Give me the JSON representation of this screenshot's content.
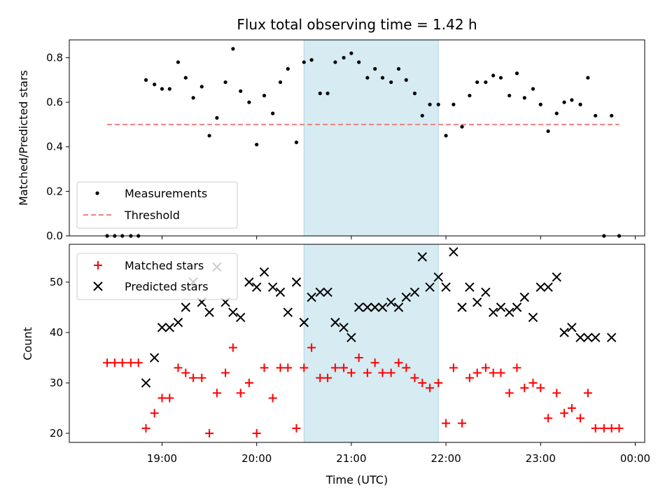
{
  "chart_data": {
    "title": "Flux total observing time = 1.42 h",
    "xlabel": "Time (UTC)",
    "x_ticks": [
      "19:00",
      "20:00",
      "21:00",
      "22:00",
      "23:00",
      "00:00"
    ],
    "x_tick_hours": [
      19,
      20,
      21,
      22,
      23,
      24
    ],
    "xlim_hours": [
      18.02,
      24.1
    ],
    "highlight_span_hours": [
      20.5,
      21.92
    ],
    "highlight_color": "#add8e6",
    "top": {
      "type": "scatter",
      "ylabel": "Matched/Predicted stars",
      "ylim": [
        0,
        0.88
      ],
      "y_ticks": [
        0.0,
        0.2,
        0.4,
        0.6,
        0.8
      ],
      "series": [
        {
          "name": "Measurements",
          "color": "#000000",
          "points": [
            [
              18.42,
              0.0
            ],
            [
              18.5,
              0.0
            ],
            [
              18.58,
              0.0
            ],
            [
              18.67,
              0.0
            ],
            [
              18.75,
              0.0
            ],
            [
              18.83,
              0.7
            ],
            [
              18.92,
              0.68
            ],
            [
              19.0,
              0.66
            ],
            [
              19.08,
              0.66
            ],
            [
              19.17,
              0.78
            ],
            [
              19.25,
              0.71
            ],
            [
              19.33,
              0.62
            ],
            [
              19.42,
              0.67
            ],
            [
              19.5,
              0.45
            ],
            [
              19.58,
              0.53
            ],
            [
              19.67,
              0.69
            ],
            [
              19.75,
              0.84
            ],
            [
              19.83,
              0.65
            ],
            [
              19.92,
              0.6
            ],
            [
              20.0,
              0.41
            ],
            [
              20.08,
              0.63
            ],
            [
              20.17,
              0.55
            ],
            [
              20.25,
              0.69
            ],
            [
              20.33,
              0.75
            ],
            [
              20.42,
              0.42
            ],
            [
              20.5,
              0.78
            ],
            [
              20.58,
              0.79
            ],
            [
              20.67,
              0.64
            ],
            [
              20.75,
              0.64
            ],
            [
              20.83,
              0.78
            ],
            [
              20.92,
              0.8
            ],
            [
              21.0,
              0.82
            ],
            [
              21.08,
              0.78
            ],
            [
              21.17,
              0.71
            ],
            [
              21.25,
              0.75
            ],
            [
              21.33,
              0.71
            ],
            [
              21.42,
              0.69
            ],
            [
              21.5,
              0.75
            ],
            [
              21.58,
              0.7
            ],
            [
              21.67,
              0.64
            ],
            [
              21.75,
              0.54
            ],
            [
              21.83,
              0.59
            ],
            [
              21.92,
              0.59
            ],
            [
              22.0,
              0.45
            ],
            [
              22.08,
              0.59
            ],
            [
              22.17,
              0.49
            ],
            [
              22.25,
              0.63
            ],
            [
              22.33,
              0.69
            ],
            [
              22.42,
              0.69
            ],
            [
              22.5,
              0.72
            ],
            [
              22.58,
              0.71
            ],
            [
              22.67,
              0.63
            ],
            [
              22.75,
              0.73
            ],
            [
              22.83,
              0.62
            ],
            [
              22.92,
              0.66
            ],
            [
              23.0,
              0.59
            ],
            [
              23.08,
              0.47
            ],
            [
              23.17,
              0.55
            ],
            [
              23.25,
              0.6
            ],
            [
              23.33,
              0.61
            ],
            [
              23.42,
              0.59
            ],
            [
              23.5,
              0.71
            ],
            [
              23.58,
              0.54
            ],
            [
              23.67,
              0.0
            ],
            [
              23.75,
              0.54
            ],
            [
              23.83,
              0.0
            ]
          ]
        },
        {
          "name": "Threshold",
          "color": "#f08080",
          "type": "line",
          "points": [
            [
              18.42,
              0.5
            ],
            [
              23.83,
              0.5
            ]
          ]
        }
      ],
      "legend_location": "lower-left"
    },
    "bottom": {
      "type": "scatter",
      "ylabel": "Count",
      "ylim": [
        18.2,
        57.5
      ],
      "y_ticks": [
        20,
        30,
        40,
        50
      ],
      "series": [
        {
          "name": "Matched stars",
          "color": "#ff0000",
          "marker": "plus",
          "points": [
            [
              18.42,
              34
            ],
            [
              18.5,
              34
            ],
            [
              18.58,
              34
            ],
            [
              18.67,
              34
            ],
            [
              18.75,
              34
            ],
            [
              18.83,
              21
            ],
            [
              18.92,
              24
            ],
            [
              19.0,
              27
            ],
            [
              19.08,
              27
            ],
            [
              19.17,
              33
            ],
            [
              19.25,
              32
            ],
            [
              19.33,
              31
            ],
            [
              19.42,
              31
            ],
            [
              19.5,
              20
            ],
            [
              19.58,
              28
            ],
            [
              19.67,
              32
            ],
            [
              19.75,
              37
            ],
            [
              19.83,
              28
            ],
            [
              19.92,
              30
            ],
            [
              20.0,
              20
            ],
            [
              20.08,
              33
            ],
            [
              20.17,
              27
            ],
            [
              20.25,
              33
            ],
            [
              20.33,
              33
            ],
            [
              20.42,
              21
            ],
            [
              20.5,
              33
            ],
            [
              20.58,
              37
            ],
            [
              20.67,
              31
            ],
            [
              20.75,
              31
            ],
            [
              20.83,
              33
            ],
            [
              20.92,
              33
            ],
            [
              21.0,
              32
            ],
            [
              21.08,
              35
            ],
            [
              21.17,
              32
            ],
            [
              21.25,
              34
            ],
            [
              21.33,
              32
            ],
            [
              21.42,
              32
            ],
            [
              21.5,
              34
            ],
            [
              21.58,
              33
            ],
            [
              21.67,
              31
            ],
            [
              21.75,
              30
            ],
            [
              21.83,
              29
            ],
            [
              21.92,
              30
            ],
            [
              22.0,
              22
            ],
            [
              22.08,
              33
            ],
            [
              22.17,
              22
            ],
            [
              22.25,
              31
            ],
            [
              22.33,
              32
            ],
            [
              22.42,
              33
            ],
            [
              22.5,
              32
            ],
            [
              22.58,
              32
            ],
            [
              22.67,
              28
            ],
            [
              22.75,
              33
            ],
            [
              22.83,
              29
            ],
            [
              22.92,
              30
            ],
            [
              23.0,
              29
            ],
            [
              23.08,
              23
            ],
            [
              23.17,
              28
            ],
            [
              23.25,
              24
            ],
            [
              23.33,
              25
            ],
            [
              23.42,
              23
            ],
            [
              23.5,
              28
            ],
            [
              23.58,
              21
            ],
            [
              23.67,
              21
            ],
            [
              23.75,
              21
            ],
            [
              23.83,
              21
            ]
          ]
        },
        {
          "name": "Predicted stars",
          "color": "#000000",
          "marker": "x",
          "points": [
            [
              18.83,
              30
            ],
            [
              18.92,
              35
            ],
            [
              19.0,
              41
            ],
            [
              19.08,
              41
            ],
            [
              19.17,
              42
            ],
            [
              19.25,
              45
            ],
            [
              19.33,
              50
            ],
            [
              19.42,
              46
            ],
            [
              19.5,
              44
            ],
            [
              19.58,
              53
            ],
            [
              19.67,
              46
            ],
            [
              19.75,
              44
            ],
            [
              19.83,
              43
            ],
            [
              19.92,
              50
            ],
            [
              20.0,
              49
            ],
            [
              20.08,
              52
            ],
            [
              20.17,
              49
            ],
            [
              20.25,
              48
            ],
            [
              20.33,
              44
            ],
            [
              20.42,
              50
            ],
            [
              20.5,
              42
            ],
            [
              20.58,
              47
            ],
            [
              20.67,
              48
            ],
            [
              20.75,
              48
            ],
            [
              20.83,
              42
            ],
            [
              20.92,
              41
            ],
            [
              21.0,
              39
            ],
            [
              21.08,
              45
            ],
            [
              21.17,
              45
            ],
            [
              21.25,
              45
            ],
            [
              21.33,
              45
            ],
            [
              21.42,
              46
            ],
            [
              21.5,
              45
            ],
            [
              21.58,
              47
            ],
            [
              21.67,
              48
            ],
            [
              21.75,
              55
            ],
            [
              21.83,
              49
            ],
            [
              21.92,
              51
            ],
            [
              22.0,
              49
            ],
            [
              22.08,
              56
            ],
            [
              22.17,
              45
            ],
            [
              22.25,
              49
            ],
            [
              22.33,
              46
            ],
            [
              22.42,
              48
            ],
            [
              22.5,
              44
            ],
            [
              22.58,
              45
            ],
            [
              22.67,
              44
            ],
            [
              22.75,
              45
            ],
            [
              22.83,
              47
            ],
            [
              22.92,
              43
            ],
            [
              23.0,
              49
            ],
            [
              23.08,
              49
            ],
            [
              23.17,
              51
            ],
            [
              23.25,
              40
            ],
            [
              23.33,
              41
            ],
            [
              23.42,
              39
            ],
            [
              23.5,
              39
            ],
            [
              23.58,
              39
            ],
            [
              23.75,
              39
            ]
          ]
        }
      ],
      "legend_location": "upper-left"
    }
  }
}
